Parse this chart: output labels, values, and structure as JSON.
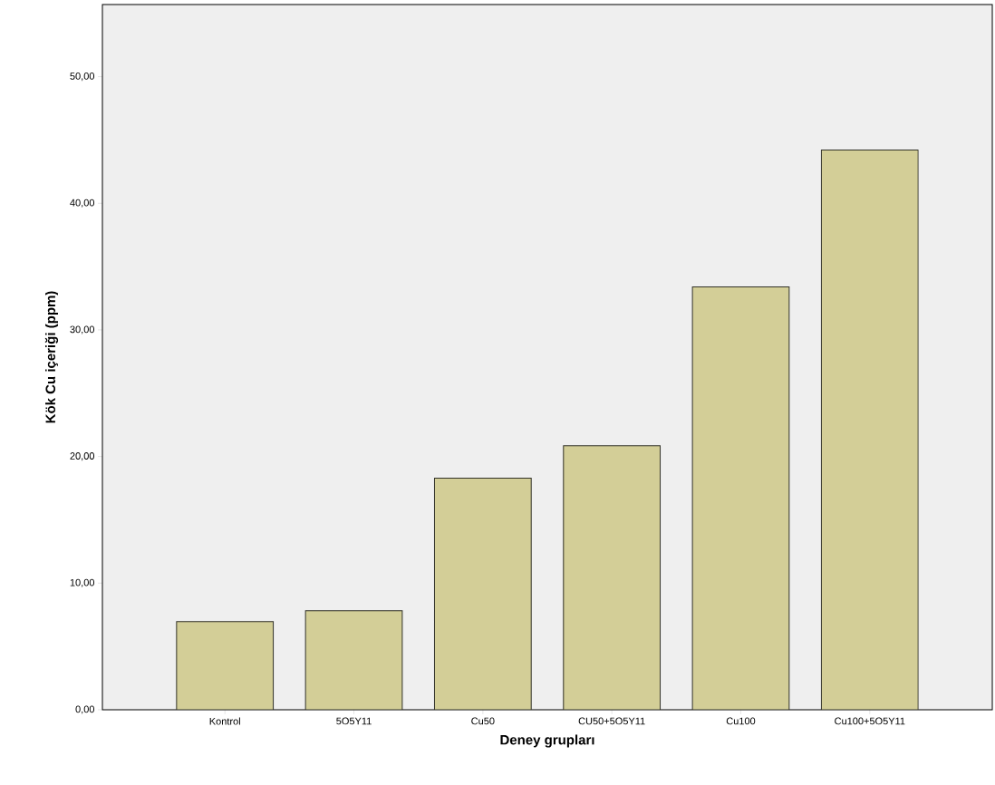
{
  "chart_data": {
    "type": "bar",
    "xlabel": "Deney grupları",
    "ylabel": "Kök Cu içeriği (ppm)",
    "categories": [
      "Kontrol",
      "5O5Y11",
      "Cu50",
      "CU50+5O5Y11",
      "Cu100",
      "Cu100+5O5Y11"
    ],
    "values": [
      6.97,
      7.82,
      18.3,
      20.85,
      33.4,
      44.2
    ],
    "color": "#d3ce97",
    "ylim": [
      0,
      55.7
    ],
    "yticks": [
      {
        "value": 0,
        "label": "0,00"
      },
      {
        "value": 10,
        "label": "10,00"
      },
      {
        "value": 20,
        "label": "20,00"
      },
      {
        "value": 30,
        "label": "30,00"
      },
      {
        "value": 40,
        "label": "40,00"
      },
      {
        "value": 50,
        "label": "50,00"
      }
    ],
    "grid": false
  }
}
